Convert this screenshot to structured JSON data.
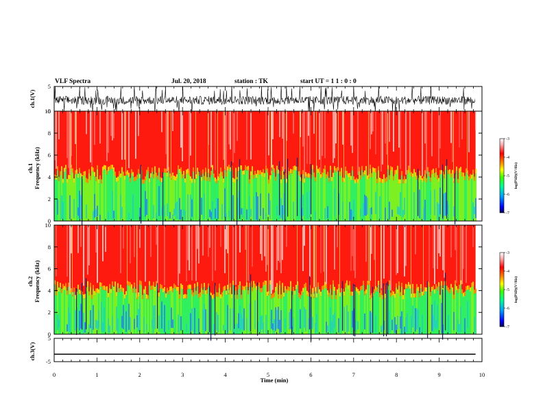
{
  "header": {
    "title": "VLF Spectra",
    "date": "Jul. 20, 2018",
    "station": "station : TK",
    "start_time": "start UT = 1 1 : 0 : 0"
  },
  "chart_data": [
    {
      "panel": "ch1-waveform",
      "type": "line",
      "ylabel": "ch.1(V)",
      "xlim": [
        0,
        10
      ],
      "ylim": [
        -5,
        5
      ],
      "yticks": [
        5,
        -5
      ],
      "data_extent_min": 9.85,
      "series": [
        {
          "description_level": "noisy signal mostly between -3 and 2 V with spikes reaching ±5 V"
        }
      ]
    },
    {
      "panel": "ch1-spectrogram",
      "type": "heatmap",
      "ylabel": "ch.1\nFrequency  (kHz)",
      "xlim": [
        0,
        10
      ],
      "ylim": [
        0,
        10
      ],
      "yticks": [
        0,
        2,
        4,
        6,
        8,
        10
      ],
      "upper_band_color": "red-white",
      "lower_band_color": "green-cyan-blue",
      "transition_khz": 4.2,
      "colorbar": {
        "label": "log(PSD)(V²/Hz)",
        "ticks": [
          -3,
          -4,
          -5,
          -6,
          -7
        ],
        "range": [
          -7,
          -3
        ],
        "colors": [
          "#000060",
          "#0000ff",
          "#00a0ff",
          "#00ff80",
          "#40ff00",
          "#ffff00",
          "#ff8000",
          "#ff0000",
          "#ffd0d0",
          "#ffffff"
        ]
      }
    },
    {
      "panel": "ch2-spectrogram",
      "type": "heatmap",
      "ylabel": "ch.2\nFrequency  (kHz)",
      "xlim": [
        0,
        10
      ],
      "ylim": [
        0,
        10
      ],
      "yticks": [
        0,
        2,
        4,
        6,
        8,
        10
      ],
      "transition_khz": 4.0,
      "colorbar": {
        "label": "log(PSD)(V²/Hz)",
        "ticks": [
          -3,
          -4,
          -5,
          -6,
          -7
        ],
        "range": [
          -7,
          -3
        ]
      }
    },
    {
      "panel": "ch3-waveform",
      "type": "line",
      "ylabel": "ch.3(V)",
      "xlim": [
        0,
        10
      ],
      "ylim": [
        -5,
        5
      ],
      "yticks": [
        5,
        -5
      ],
      "series": [
        {
          "constant_value": -1.8
        }
      ]
    }
  ],
  "x_axis": {
    "label": "Time  (min)",
    "ticks": [
      0,
      1,
      2,
      3,
      4,
      5,
      6,
      7,
      8,
      9,
      10
    ]
  }
}
